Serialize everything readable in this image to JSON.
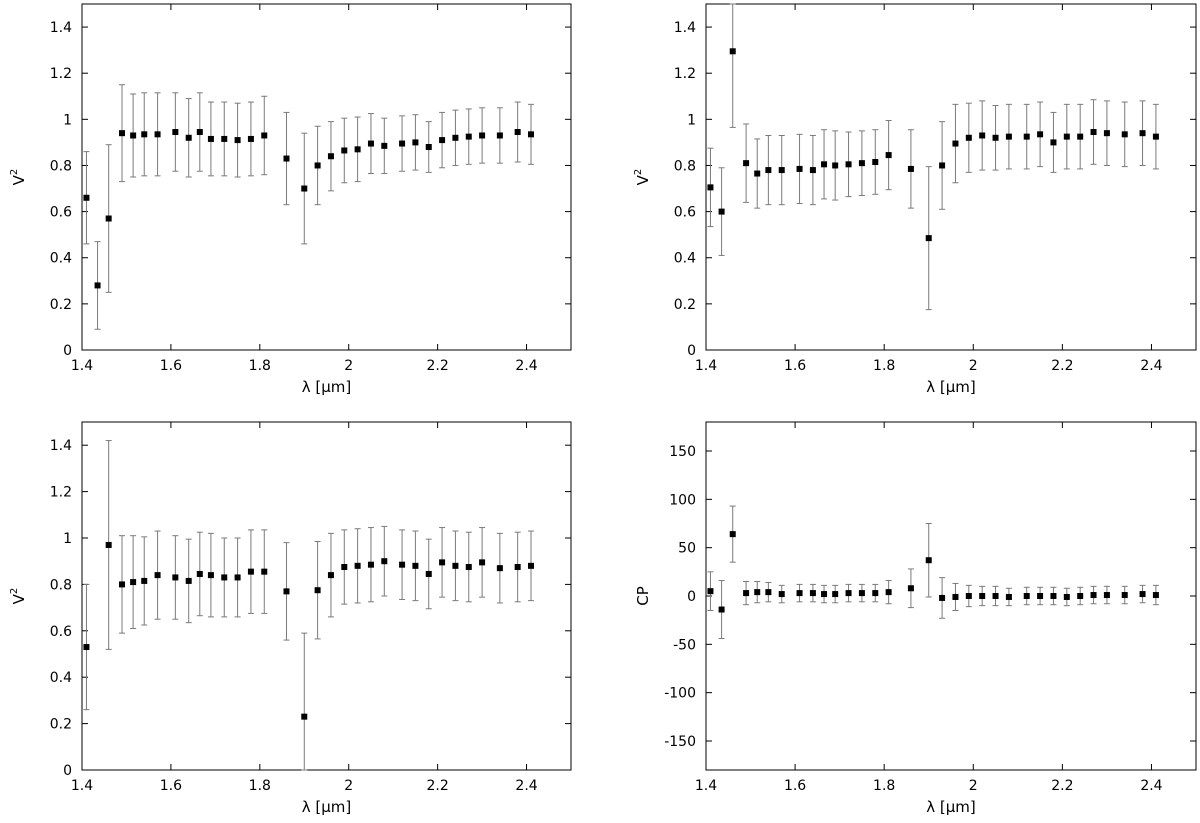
{
  "chart_data": [
    {
      "type": "scatter",
      "title": "",
      "xlabel": "λ [µm]",
      "ylabel": "V",
      "ylabel_sup": "2",
      "xlim": [
        1.4,
        2.5
      ],
      "ylim": [
        0,
        1.5
      ],
      "xticks": [
        1.4,
        1.6,
        1.8,
        2.0,
        2.2,
        2.4
      ],
      "xtick_labels": [
        "1.4",
        "1.6",
        "1.8",
        "2",
        "2.2",
        "2.4"
      ],
      "yticks": [
        0,
        0.2,
        0.4,
        0.6,
        0.8,
        1.0,
        1.2,
        1.4
      ],
      "ytick_labels": [
        "0",
        "0.2",
        "0.4",
        "0.6",
        "0.8",
        "1",
        "1.2",
        "1.4"
      ],
      "grid": false,
      "x": [
        1.41,
        1.435,
        1.46,
        1.49,
        1.515,
        1.54,
        1.57,
        1.61,
        1.64,
        1.665,
        1.69,
        1.72,
        1.75,
        1.78,
        1.81,
        1.86,
        1.9,
        1.93,
        1.96,
        1.99,
        2.02,
        2.05,
        2.08,
        2.12,
        2.15,
        2.18,
        2.21,
        2.24,
        2.27,
        2.3,
        2.34,
        2.38,
        2.41
      ],
      "y": [
        0.66,
        0.28,
        0.57,
        0.94,
        0.93,
        0.935,
        0.935,
        0.945,
        0.92,
        0.945,
        0.915,
        0.915,
        0.91,
        0.915,
        0.93,
        0.83,
        0.7,
        0.8,
        0.84,
        0.865,
        0.87,
        0.895,
        0.885,
        0.895,
        0.9,
        0.88,
        0.91,
        0.92,
        0.925,
        0.93,
        0.93,
        0.945,
        0.935
      ],
      "yerr": [
        0.2,
        0.19,
        0.32,
        0.21,
        0.18,
        0.18,
        0.18,
        0.17,
        0.17,
        0.17,
        0.16,
        0.16,
        0.16,
        0.16,
        0.17,
        0.2,
        0.24,
        0.17,
        0.15,
        0.14,
        0.14,
        0.13,
        0.12,
        0.12,
        0.12,
        0.11,
        0.12,
        0.12,
        0.12,
        0.12,
        0.12,
        0.13,
        0.13
      ]
    },
    {
      "type": "scatter",
      "title": "",
      "xlabel": "λ [µm]",
      "ylabel": "V",
      "ylabel_sup": "2",
      "xlim": [
        1.4,
        2.5
      ],
      "ylim": [
        0,
        1.5
      ],
      "xticks": [
        1.4,
        1.6,
        1.8,
        2.0,
        2.2,
        2.4
      ],
      "xtick_labels": [
        "1.4",
        "1.6",
        "1.8",
        "2",
        "2.2",
        "2.4"
      ],
      "yticks": [
        0,
        0.2,
        0.4,
        0.6,
        0.8,
        1.0,
        1.2,
        1.4
      ],
      "ytick_labels": [
        "0",
        "0.2",
        "0.4",
        "0.6",
        "0.8",
        "1",
        "1.2",
        "1.4"
      ],
      "grid": false,
      "x": [
        1.41,
        1.435,
        1.46,
        1.49,
        1.515,
        1.54,
        1.57,
        1.61,
        1.64,
        1.665,
        1.69,
        1.72,
        1.75,
        1.78,
        1.81,
        1.86,
        1.9,
        1.93,
        1.96,
        1.99,
        2.02,
        2.05,
        2.08,
        2.12,
        2.15,
        2.18,
        2.21,
        2.24,
        2.27,
        2.3,
        2.34,
        2.38,
        2.41
      ],
      "y": [
        0.705,
        0.6,
        1.295,
        0.81,
        0.765,
        0.78,
        0.78,
        0.785,
        0.78,
        0.805,
        0.8,
        0.805,
        0.81,
        0.815,
        0.845,
        0.785,
        0.485,
        0.8,
        0.895,
        0.92,
        0.93,
        0.92,
        0.925,
        0.925,
        0.935,
        0.9,
        0.925,
        0.925,
        0.945,
        0.94,
        0.935,
        0.94,
        0.925
      ],
      "yerr": [
        0.17,
        0.19,
        0.33,
        0.17,
        0.15,
        0.15,
        0.15,
        0.15,
        0.15,
        0.15,
        0.15,
        0.14,
        0.14,
        0.14,
        0.15,
        0.17,
        0.31,
        0.19,
        0.17,
        0.15,
        0.15,
        0.14,
        0.14,
        0.14,
        0.14,
        0.13,
        0.14,
        0.14,
        0.14,
        0.14,
        0.14,
        0.14,
        0.14
      ]
    },
    {
      "type": "scatter",
      "title": "",
      "xlabel": "λ [µm]",
      "ylabel": "V",
      "ylabel_sup": "2",
      "xlim": [
        1.4,
        2.5
      ],
      "ylim": [
        0,
        1.5
      ],
      "xticks": [
        1.4,
        1.6,
        1.8,
        2.0,
        2.2,
        2.4
      ],
      "xtick_labels": [
        "1.4",
        "1.6",
        "1.8",
        "2",
        "2.2",
        "2.4"
      ],
      "yticks": [
        0,
        0.2,
        0.4,
        0.6,
        0.8,
        1.0,
        1.2,
        1.4
      ],
      "ytick_labels": [
        "0",
        "0.2",
        "0.4",
        "0.6",
        "0.8",
        "1",
        "1.2",
        "1.4"
      ],
      "grid": false,
      "x": [
        1.41,
        1.46,
        1.49,
        1.515,
        1.54,
        1.57,
        1.61,
        1.64,
        1.665,
        1.69,
        1.72,
        1.75,
        1.78,
        1.81,
        1.86,
        1.9,
        1.93,
        1.96,
        1.99,
        2.02,
        2.05,
        2.08,
        2.12,
        2.15,
        2.18,
        2.21,
        2.24,
        2.27,
        2.3,
        2.34,
        2.38,
        2.41
      ],
      "y": [
        0.53,
        0.97,
        0.8,
        0.81,
        0.815,
        0.84,
        0.83,
        0.815,
        0.845,
        0.84,
        0.83,
        0.83,
        0.855,
        0.855,
        0.77,
        0.23,
        0.775,
        0.84,
        0.875,
        0.88,
        0.885,
        0.9,
        0.885,
        0.88,
        0.845,
        0.895,
        0.88,
        0.875,
        0.895,
        0.87,
        0.875,
        0.88
      ],
      "yerr": [
        0.27,
        0.45,
        0.21,
        0.2,
        0.19,
        0.19,
        0.18,
        0.18,
        0.18,
        0.18,
        0.17,
        0.17,
        0.18,
        0.18,
        0.21,
        0.36,
        0.21,
        0.18,
        0.16,
        0.16,
        0.16,
        0.15,
        0.15,
        0.15,
        0.15,
        0.15,
        0.15,
        0.15,
        0.15,
        0.15,
        0.15,
        0.15
      ]
    },
    {
      "type": "scatter",
      "title": "",
      "xlabel": "λ [µm]",
      "ylabel": "CP",
      "ylabel_sup": "",
      "xlim": [
        1.4,
        2.5
      ],
      "ylim": [
        -180,
        180
      ],
      "xticks": [
        1.4,
        1.6,
        1.8,
        2.0,
        2.2,
        2.4
      ],
      "xtick_labels": [
        "1.4",
        "1.6",
        "1.8",
        "2",
        "2.2",
        "2.4"
      ],
      "yticks": [
        -150,
        -100,
        -50,
        0,
        50,
        100,
        150
      ],
      "ytick_labels": [
        "-150",
        "-100",
        "-50",
        "0",
        "50",
        "100",
        "150"
      ],
      "grid": false,
      "x": [
        1.41,
        1.435,
        1.46,
        1.49,
        1.515,
        1.54,
        1.57,
        1.61,
        1.64,
        1.665,
        1.69,
        1.72,
        1.75,
        1.78,
        1.81,
        1.86,
        1.9,
        1.93,
        1.96,
        1.99,
        2.02,
        2.05,
        2.08,
        2.12,
        2.15,
        2.18,
        2.21,
        2.24,
        2.27,
        2.3,
        2.34,
        2.38,
        2.41
      ],
      "y": [
        5,
        -14,
        64,
        3,
        4,
        4,
        2,
        3,
        3,
        2,
        2,
        3,
        3,
        3,
        4,
        8,
        37,
        -2,
        -1,
        0,
        0,
        0,
        -1,
        0,
        0,
        0,
        -1,
        0,
        1,
        1,
        1,
        2,
        1
      ],
      "yerr": [
        20,
        30,
        29,
        12,
        11,
        10,
        9,
        9,
        9,
        9,
        9,
        9,
        9,
        9,
        12,
        20,
        38,
        21,
        14,
        11,
        10,
        10,
        9,
        9,
        9,
        9,
        9,
        9,
        9,
        9,
        9,
        9,
        10
      ]
    }
  ]
}
